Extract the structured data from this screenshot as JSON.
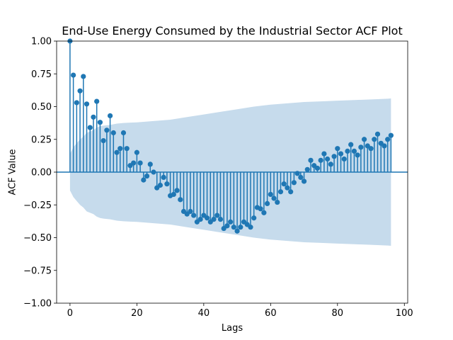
{
  "chart_data": {
    "type": "scatter",
    "title": "End-Use Energy Consumed by the Industrial Sector ACF Plot",
    "xlabel": "Lags",
    "ylabel": "ACF Value",
    "xlim": [
      -4,
      101
    ],
    "ylim": [
      -1.0,
      1.0
    ],
    "xticks": [
      "0",
      "20",
      "40",
      "60",
      "80",
      "100"
    ],
    "yticks": [
      "1.00",
      "0.75",
      "0.50",
      "0.25",
      "0.00",
      "−0.25",
      "−0.50",
      "−0.75",
      "−1.00"
    ],
    "grid": false,
    "colors": {
      "marker": "#1f77b4",
      "band": "#c6dbec"
    },
    "lags": [
      0,
      1,
      2,
      3,
      4,
      5,
      6,
      7,
      8,
      9,
      10,
      11,
      12,
      13,
      14,
      15,
      16,
      17,
      18,
      19,
      20,
      21,
      22,
      23,
      24,
      25,
      26,
      27,
      28,
      29,
      30,
      31,
      32,
      33,
      34,
      35,
      36,
      37,
      38,
      39,
      40,
      41,
      42,
      43,
      44,
      45,
      46,
      47,
      48,
      49,
      50,
      51,
      52,
      53,
      54,
      55,
      56,
      57,
      58,
      59,
      60,
      61,
      62,
      63,
      64,
      65,
      66,
      67,
      68,
      69,
      70,
      71,
      72,
      73,
      74,
      75,
      76,
      77,
      78,
      79,
      80,
      81,
      82,
      83,
      84,
      85,
      86,
      87,
      88,
      89,
      90,
      91,
      92,
      93,
      94,
      95,
      96
    ],
    "acf": [
      1.0,
      0.74,
      0.53,
      0.62,
      0.73,
      0.52,
      0.34,
      0.42,
      0.54,
      0.38,
      0.24,
      0.32,
      0.43,
      0.3,
      0.15,
      0.18,
      0.3,
      0.18,
      0.05,
      0.07,
      0.15,
      0.07,
      -0.06,
      -0.03,
      0.06,
      0.0,
      -0.12,
      -0.1,
      -0.04,
      -0.09,
      -0.18,
      -0.17,
      -0.14,
      -0.21,
      -0.3,
      -0.32,
      -0.3,
      -0.33,
      -0.38,
      -0.36,
      -0.33,
      -0.35,
      -0.38,
      -0.36,
      -0.33,
      -0.36,
      -0.43,
      -0.41,
      -0.38,
      -0.42,
      -0.45,
      -0.42,
      -0.38,
      -0.4,
      -0.42,
      -0.35,
      -0.27,
      -0.28,
      -0.31,
      -0.24,
      -0.17,
      -0.2,
      -0.23,
      -0.15,
      -0.09,
      -0.12,
      -0.15,
      -0.08,
      -0.01,
      -0.04,
      -0.07,
      0.02,
      0.09,
      0.05,
      0.03,
      0.09,
      0.14,
      0.1,
      0.06,
      0.12,
      0.18,
      0.14,
      0.1,
      0.16,
      0.21,
      0.16,
      0.13,
      0.19,
      0.25,
      0.2,
      0.18,
      0.25,
      0.29,
      0.22,
      0.2,
      0.25,
      0.28
    ],
    "confint_lags": [
      0,
      1,
      2,
      3,
      4,
      5,
      6,
      7,
      8,
      9,
      10,
      12,
      14,
      16,
      18,
      20,
      25,
      30,
      35,
      40,
      45,
      50,
      55,
      60,
      65,
      70,
      75,
      80,
      85,
      90,
      95,
      96
    ],
    "confint_upper": [
      0.14,
      0.19,
      0.22,
      0.25,
      0.27,
      0.3,
      0.31,
      0.32,
      0.34,
      0.35,
      0.355,
      0.36,
      0.37,
      0.375,
      0.378,
      0.38,
      0.39,
      0.4,
      0.42,
      0.44,
      0.46,
      0.48,
      0.5,
      0.515,
      0.525,
      0.535,
      0.54,
      0.545,
      0.55,
      0.555,
      0.56,
      0.562
    ],
    "confint_lower": [
      -0.14,
      -0.19,
      -0.22,
      -0.25,
      -0.27,
      -0.3,
      -0.31,
      -0.32,
      -0.34,
      -0.35,
      -0.355,
      -0.36,
      -0.37,
      -0.375,
      -0.378,
      -0.38,
      -0.39,
      -0.4,
      -0.42,
      -0.44,
      -0.46,
      -0.48,
      -0.5,
      -0.515,
      -0.525,
      -0.535,
      -0.54,
      -0.545,
      -0.55,
      -0.555,
      -0.56,
      -0.562
    ]
  }
}
